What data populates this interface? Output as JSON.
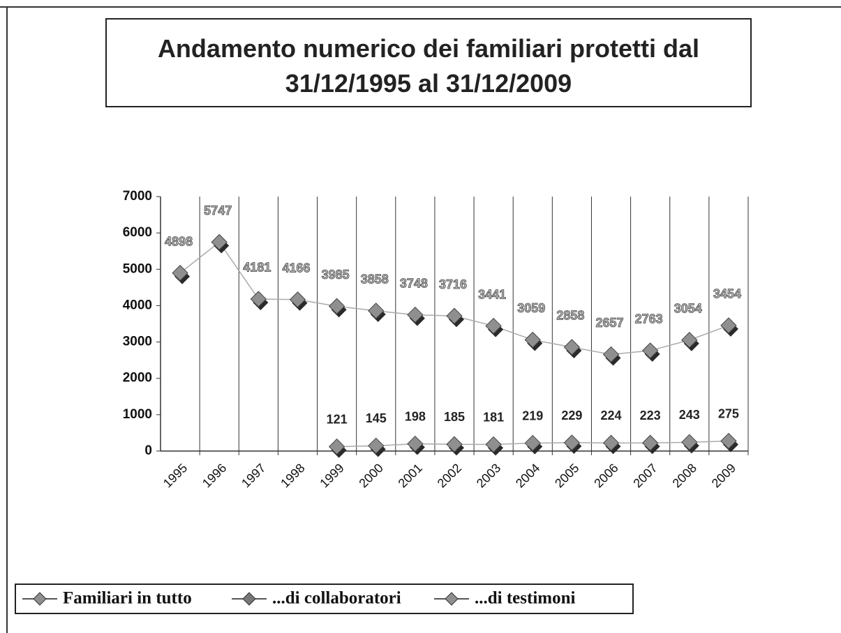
{
  "chart_data": {
    "type": "line",
    "title": "Andamento numerico dei familiari protetti dal 31/12/1995 al 31/12/2009",
    "categories": [
      "1995",
      "1996",
      "1997",
      "1998",
      "1999",
      "2000",
      "2001",
      "2002",
      "2003",
      "2004",
      "2005",
      "2006",
      "2007",
      "2008",
      "2009"
    ],
    "series": [
      {
        "name": "Familiari in tutto",
        "color": "#8f8f8f",
        "values": [
          4898,
          5747,
          4181,
          4166,
          3985,
          3858,
          3748,
          3716,
          3441,
          3059,
          2858,
          2657,
          2763,
          3054,
          3454
        ]
      },
      {
        "name": "...di collaboratori",
        "color": "#777777",
        "values": [
          null,
          null,
          null,
          null,
          null,
          null,
          null,
          null,
          null,
          null,
          null,
          null,
          null,
          null,
          null
        ]
      },
      {
        "name": "...di testimoni",
        "color": "#8f8f8f",
        "values": [
          null,
          null,
          null,
          null,
          121,
          145,
          198,
          185,
          181,
          219,
          229,
          224,
          223,
          243,
          275
        ]
      }
    ],
    "ylim": [
      0,
      7000
    ],
    "yticks": [
      0,
      1000,
      2000,
      3000,
      4000,
      5000,
      6000,
      7000
    ],
    "grid": true,
    "legend": "bottom-left"
  }
}
